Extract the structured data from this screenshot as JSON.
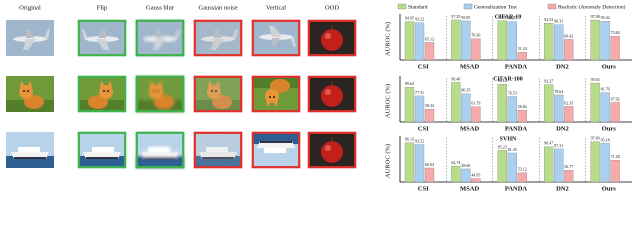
{
  "figure": {
    "columns": [
      {
        "label": "Original",
        "frame": null
      },
      {
        "label": "Flip",
        "frame": "#3cb44b"
      },
      {
        "label": "Gauss blur",
        "frame": "#3cb44b"
      },
      {
        "label": "Gaussian noise",
        "frame": "#e0302a"
      },
      {
        "label": "Vertical",
        "frame": "#e0302a"
      },
      {
        "label": "OOD",
        "frame": "#e0302a"
      }
    ],
    "rows": [
      "airplane",
      "cat",
      "ship"
    ]
  },
  "legend": [
    "Standard",
    "Generalization Test",
    "Realistic (Anomaly Detection)"
  ],
  "chart_data": [
    {
      "type": "bar",
      "title": "CIFAR-10",
      "y_label": "AUROC (%)",
      "categories": [
        "CSI",
        "MSAD",
        "PANDA",
        "DN2",
        "Ours"
      ],
      "ylim": [
        40,
        100
      ],
      "series": [
        {
          "color": "#b7dc8c",
          "values": [
            94.95,
            97.25,
            96.26,
            92.52,
            97.08
          ]
        },
        {
          "color": "#a9d0f0",
          "values": [
            93.22,
            95.85,
            94.67,
            90.31,
            95.42
          ]
        },
        {
          "color": "#f5abab",
          "values": [
            65.12,
            70.36,
            51.24,
            69.42,
            73.84
          ]
        }
      ]
    },
    {
      "type": "bar",
      "title": "CIFAR-100",
      "y_label": "AUROC (%)",
      "categories": [
        "CSI",
        "MSAD",
        "PANDA",
        "DN2",
        "Ours"
      ],
      "ylim": [
        40,
        100
      ],
      "series": [
        {
          "color": "#b7dc8c",
          "values": [
            89.62,
            96.48,
            94.12,
            93.27,
            95.63
          ]
        },
        {
          "color": "#a9d0f0",
          "values": [
            77.31,
            80.35,
            76.53,
            78.64,
            81.76
          ]
        },
        {
          "color": "#f5abab",
          "values": [
            58.34,
            61.79,
            56.82,
            62.35,
            67.92
          ]
        }
      ]
    },
    {
      "type": "bar",
      "title": "SVHN",
      "y_label": "AUROC (%)",
      "categories": [
        "CSI",
        "MSAD",
        "PANDA",
        "DN2",
        "Ours"
      ],
      "ylim": [
        40,
        100
      ],
      "series": [
        {
          "color": "#b7dc8c",
          "values": [
            96.13,
            62.74,
            85.23,
            90.47,
            97.69
          ]
        },
        {
          "color": "#a9d0f0",
          "values": [
            93.52,
            58.66,
            81.45,
            87.31,
            95.18
          ]
        },
        {
          "color": "#f5abab",
          "values": [
            60.04,
            44.95,
            53.12,
            56.77,
            71.28
          ]
        }
      ]
    }
  ]
}
